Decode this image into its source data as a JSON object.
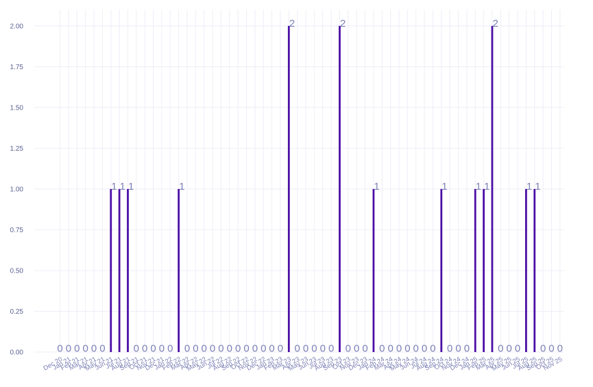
{
  "colors": {
    "bar": "#4b0fa6",
    "grid": "#eeeef8",
    "tick_text": "#5e6396",
    "label_text": "#7b80b4"
  },
  "chart_data": {
    "type": "bar",
    "title": "",
    "xlabel": "",
    "ylabel": "",
    "ylim": [
      0,
      2.1
    ],
    "yticks": [
      "0.00",
      "0.25",
      "0.50",
      "0.75",
      "1.00",
      "1.25",
      "1.50",
      "1.75",
      "2.00"
    ],
    "grid": true,
    "categories": [
      "Dec 20",
      "Jan 21",
      "Feb 21",
      "Mar 21",
      "Apr 21",
      "May 21",
      "Jun 21",
      "Jul 21",
      "Aug 21",
      "Sep 21",
      "Oct 21",
      "Nov 21",
      "Dec 21",
      "Jan 22",
      "Feb 22",
      "Mar 22",
      "Apr 22",
      "May 22",
      "Jun 22",
      "Jul 22",
      "Aug 22",
      "Sep 22",
      "Oct 22",
      "Nov 22",
      "Dec 22",
      "Jan 23",
      "Feb 23",
      "Mar 23",
      "Apr 23",
      "May 23",
      "Jun 23",
      "Jul 23",
      "Aug 23",
      "Sep 23",
      "Oct 23",
      "Nov 23",
      "Dec 23",
      "Jan 24",
      "Feb 24",
      "Mar 24",
      "Apr 24",
      "May 24",
      "Jun 24",
      "Jul 24",
      "Aug 24",
      "Sep 24",
      "Oct 24",
      "Nov 24",
      "Dec 24",
      "Jan 25",
      "Feb 25",
      "Mar 25",
      "Apr 25",
      "May 25",
      "Jun 25",
      "Jul 25",
      "Aug 25",
      "Sep 25",
      "Oct 25",
      "Nov 25"
    ],
    "values": [
      0,
      0,
      0,
      0,
      0,
      0,
      1,
      1,
      1,
      0,
      0,
      0,
      0,
      0,
      1,
      0,
      0,
      0,
      0,
      0,
      0,
      0,
      0,
      0,
      0,
      0,
      0,
      2,
      0,
      0,
      0,
      0,
      0,
      2,
      0,
      0,
      0,
      1,
      0,
      0,
      0,
      0,
      0,
      0,
      0,
      1,
      0,
      0,
      0,
      1,
      1,
      2,
      0,
      0,
      0,
      1,
      1,
      0,
      0,
      0
    ],
    "data_labels": [
      "0",
      "0",
      "0",
      "0",
      "0",
      "0",
      "1",
      "1",
      "1",
      "0",
      "0",
      "0",
      "0",
      "0",
      "1",
      "0",
      "0",
      "0",
      "0",
      "0",
      "0",
      "0",
      "0",
      "0",
      "0",
      "0",
      "0",
      "2",
      "0",
      "0",
      "0",
      "0",
      "0",
      "2",
      "0",
      "0",
      "0",
      "1",
      "0",
      "0",
      "0",
      "0",
      "0",
      "0",
      "0",
      "1",
      "0",
      "0",
      "0",
      "1",
      "1",
      "2",
      "0",
      "0",
      "0",
      "1",
      "1",
      "0",
      "0",
      "0"
    ]
  }
}
